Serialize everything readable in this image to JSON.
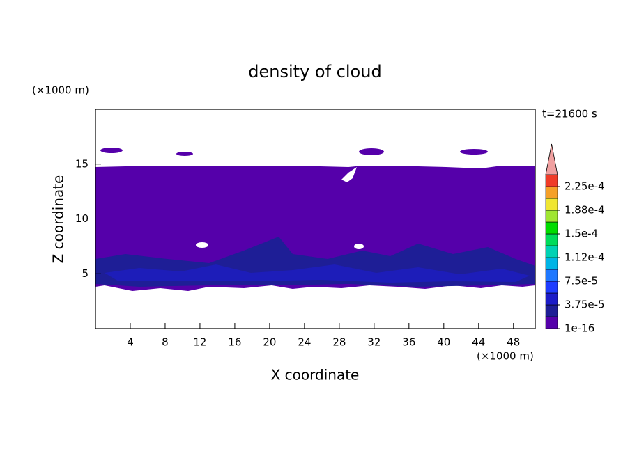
{
  "chart_data": {
    "type": "contour",
    "title": "density of cloud",
    "x_label": "X coordinate",
    "y_label": "Z coordinate",
    "x_unit": "(×1000 m)",
    "y_unit": "(×1000 m)",
    "time_label": "t=21600 s",
    "xlim": [
      0,
      50.5
    ],
    "xticks": [
      4,
      8,
      12,
      16,
      20,
      24,
      28,
      32,
      36,
      40,
      44,
      48
    ],
    "ylim": [
      0,
      20
    ],
    "yticks": [
      5,
      10,
      15
    ],
    "colorbar": {
      "lim": [
        1e-16,
        0.00024375
      ],
      "ticks": [
        1e-16,
        {
          "value": 3.75e-05,
          "label": "3.75e-5"
        },
        {
          "value": 7.5e-05,
          "label": "7.5e-5"
        },
        {
          "value": 0.0001125,
          "label": "1.12e-4"
        },
        {
          "value": 0.00015,
          "label": "1.5e-4"
        },
        {
          "value": 0.0001875,
          "label": "1.88e-4"
        },
        {
          "value": 0.000225,
          "label": "2.25e-4"
        }
      ],
      "colors": [
        "#5500aa",
        "#1e1e96",
        "#1c1cc8",
        "#1e3cff",
        "#1e78ff",
        "#00b4e6",
        "#00d2b4",
        "#00dc5a",
        "#00dc00",
        "#a0e632",
        "#f0e632",
        "#f5a028",
        "#f03c28"
      ],
      "extend_color": "#f0a0a0"
    }
  }
}
